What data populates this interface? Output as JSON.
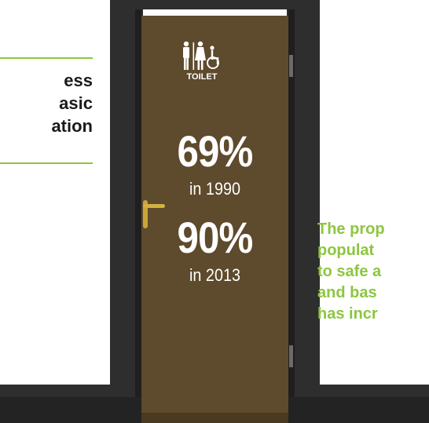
{
  "left_caption": {
    "lines": [
      "ess",
      "asic",
      "ation"
    ]
  },
  "door": {
    "sign_label": "TOILET",
    "icon": "toilet-sign-icon",
    "stats": [
      {
        "value": "69%",
        "year": "in 1990"
      },
      {
        "value": "90%",
        "year": "in 2013"
      }
    ]
  },
  "right_caption": {
    "lines": [
      "The prop",
      "populat",
      "to safe a",
      "and bas",
      "has incr"
    ]
  },
  "colors": {
    "accent": "#8cc63f",
    "door": "#5e4a2c",
    "frame": "#2e2e2e"
  }
}
